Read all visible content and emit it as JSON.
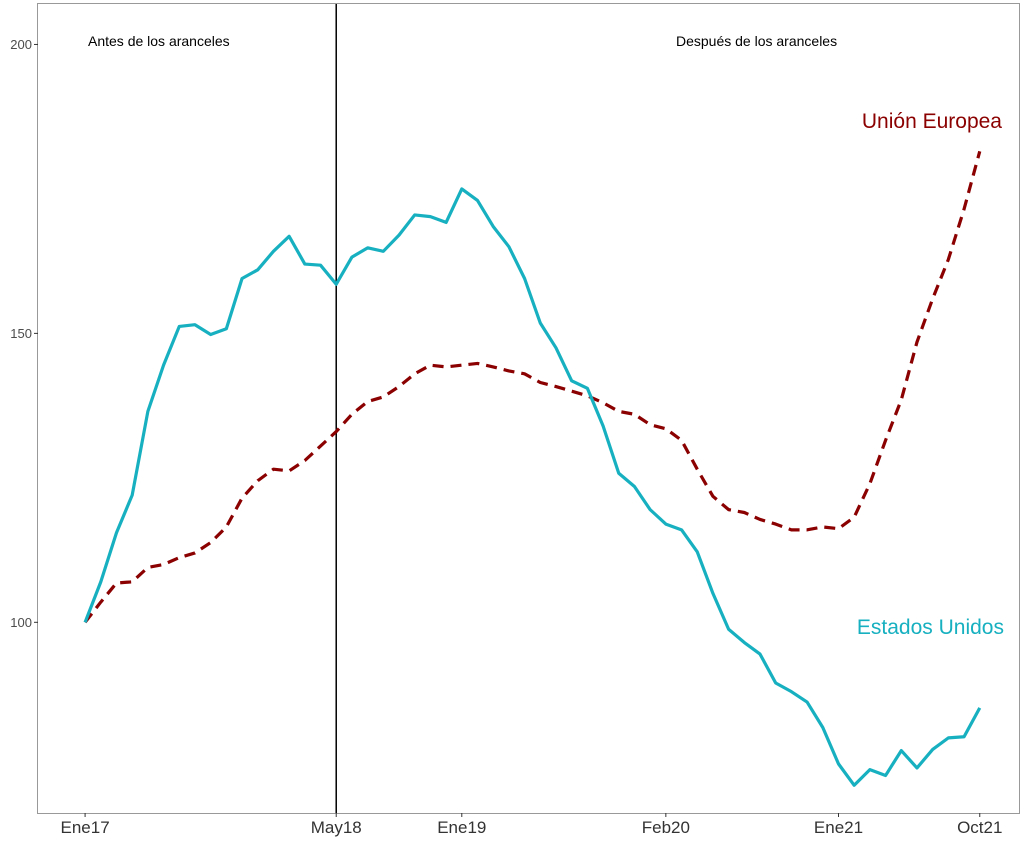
{
  "chart_data": {
    "type": "line",
    "title": "",
    "xlabel": "",
    "ylabel": "",
    "ylim": [
      67,
      207
    ],
    "y_ticks": [
      100,
      150,
      200
    ],
    "x_ticks": [
      {
        "label": "Ene17",
        "index": 0
      },
      {
        "label": "May18",
        "index": 16
      },
      {
        "label": "Ene19",
        "index": 24
      },
      {
        "label": "Feb20",
        "index": 37
      },
      {
        "label": "Ene21",
        "index": 48
      },
      {
        "label": "Oct21",
        "index": 57
      }
    ],
    "x_range": [
      -3,
      59.5
    ],
    "divider_index": 16,
    "period_labels": {
      "before": "Antes de los aranceles",
      "after": "Después de los aranceles"
    },
    "grid": false,
    "series": [
      {
        "name": "Unión Europea",
        "color": "#8b0000",
        "dash": "dashed",
        "values": [
          100,
          103.5,
          106.8,
          107.0,
          109.5,
          110.0,
          111.2,
          112.0,
          113.8,
          116.5,
          121.5,
          124.5,
          126.5,
          126.2,
          128.0,
          130.5,
          133.0,
          136.0,
          138.2,
          139.0,
          140.8,
          143.0,
          144.5,
          144.2,
          144.5,
          144.8,
          144.2,
          143.5,
          143.0,
          141.5,
          140.8,
          140.0,
          139.2,
          138.0,
          136.5,
          136.0,
          134.2,
          133.5,
          131.5,
          126.5,
          121.8,
          119.5,
          119.0,
          117.8,
          117.0,
          116.0,
          116.0,
          116.5,
          116.2,
          118.2,
          124.0,
          131.5,
          138.5,
          148.5,
          156.0,
          162.8,
          171.5,
          181.5
        ]
      },
      {
        "name": "Estados Unidos",
        "color": "#17b0c0",
        "dash": "solid",
        "values": [
          100,
          107.0,
          115.5,
          122.0,
          136.5,
          144.5,
          151.2,
          151.5,
          149.8,
          150.8,
          159.5,
          161.0,
          164.2,
          166.8,
          162.0,
          161.8,
          158.5,
          163.2,
          164.8,
          164.2,
          167.0,
          170.5,
          170.2,
          169.2,
          175.0,
          173.0,
          168.5,
          165.0,
          159.5,
          151.8,
          147.5,
          141.8,
          140.5,
          134.0,
          125.8,
          123.5,
          119.5,
          117.0,
          116.0,
          112.2,
          105.0,
          98.8,
          96.5,
          94.5,
          89.5,
          88.0,
          86.2,
          81.8,
          75.5,
          71.8,
          74.5,
          73.5,
          77.8,
          74.8,
          78.0,
          80.0,
          80.2,
          85.2
        ]
      }
    ],
    "series_labels": [
      {
        "text": "Unión Europea",
        "color": "#8b0000"
      },
      {
        "text": "Estados Unidos",
        "color": "#17b0c0"
      }
    ]
  }
}
